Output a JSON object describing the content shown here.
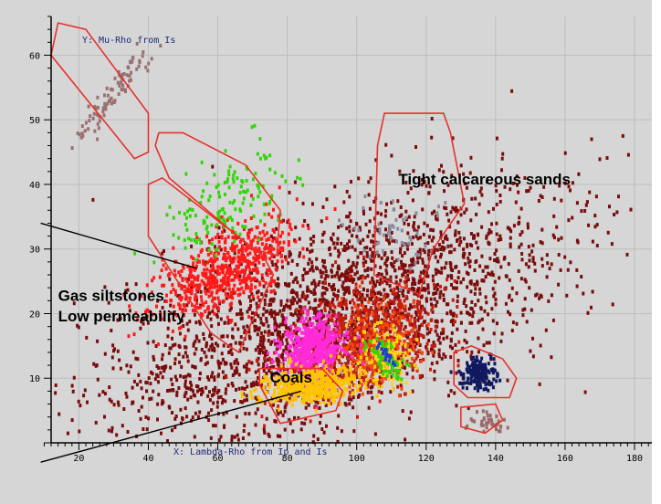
{
  "chart_data": {
    "type": "scatter",
    "xlabel": "X: Lambda-Rho from Ip and Is",
    "ylabel": "Y: Mu-Rho from Is",
    "xlim": [
      12,
      185
    ],
    "ylim": [
      0,
      66
    ],
    "xticks": [
      20,
      40,
      60,
      80,
      100,
      120,
      140,
      160,
      180
    ],
    "yticks": [
      10,
      20,
      30,
      40,
      50,
      60
    ],
    "grid": true,
    "colors": {
      "background": "#d6d6d6",
      "grid": "#bdbdbd",
      "polygon": "#e8302a",
      "gas_cloud": "#7a0c0c",
      "brine_core": "#c81e10",
      "hot": "#f04a10",
      "warm": "#ffd21a",
      "green": "#35d40a",
      "blue": "#1f3cd8",
      "siltstone": "#ff1a1a",
      "magenta": "#ff2ad8",
      "coal": "#ffc400",
      "calcareous": "#8a8aa0",
      "navy": "#101860",
      "upper_trend": "#9a7070"
    },
    "clusters": [
      {
        "id": "main-cloud",
        "color": "#7a0c0c",
        "center": [
          95,
          20
        ],
        "axis_angle_deg": -23,
        "spread": [
          34,
          7.5
        ],
        "count": 2600
      },
      {
        "id": "dense-core",
        "color": "#c81e10",
        "center": [
          101,
          16.5
        ],
        "axis_angle_deg": -25,
        "spread": [
          12,
          3.6
        ],
        "count": 700
      },
      {
        "id": "hot-core",
        "color": "#f04a10",
        "center": [
          106,
          15
        ],
        "axis_angle_deg": -30,
        "spread": [
          6,
          3.0
        ],
        "count": 260
      },
      {
        "id": "warm-core",
        "color": "#ffd21a",
        "center": [
          108,
          14
        ],
        "axis_angle_deg": -35,
        "spread": [
          3.2,
          2.6
        ],
        "count": 140
      },
      {
        "id": "green-core",
        "color": "#35d40a",
        "center": [
          108,
          13.5
        ],
        "axis_angle_deg": -40,
        "spread": [
          1.8,
          2.0
        ],
        "count": 70
      },
      {
        "id": "blue-core",
        "color": "#1f3cd8",
        "center": [
          108,
          14
        ],
        "axis_angle_deg": -40,
        "spread": [
          0.7,
          1.0
        ],
        "count": 22
      },
      {
        "id": "siltstone-red",
        "color": "#ff1a1a",
        "center": [
          62,
          27
        ],
        "axis_angle_deg": -32,
        "spread": [
          11,
          2.6
        ],
        "count": 620
      },
      {
        "id": "upper-green",
        "color": "#35d40a",
        "center": [
          62,
          37
        ],
        "axis_angle_deg": -35,
        "spread": [
          10,
          2.8
        ],
        "count": 150
      },
      {
        "id": "magenta-blob",
        "color": "#ff2ad8",
        "center": [
          87,
          15
        ],
        "axis_angle_deg": -60,
        "spread": [
          4.5,
          2.4
        ],
        "count": 520
      },
      {
        "id": "coal-yellow",
        "color": "#ffc400",
        "center": [
          86,
          9
        ],
        "axis_angle_deg": -5,
        "spread": [
          7,
          1.3
        ],
        "count": 480
      },
      {
        "id": "calcareous-grey",
        "color": "#8a8aa0",
        "center": [
          110,
          33
        ],
        "axis_angle_deg": -70,
        "spread": [
          6,
          3.5
        ],
        "count": 55
      },
      {
        "id": "navy-cluster",
        "color": "#101860",
        "center": [
          135,
          11
        ],
        "axis_angle_deg": 0,
        "spread": [
          2.8,
          1.3
        ],
        "count": 160
      },
      {
        "id": "lower-right",
        "color": "#9a6a6a",
        "center": [
          137,
          3.5
        ],
        "axis_angle_deg": 0,
        "spread": [
          3,
          0.8
        ],
        "count": 40
      },
      {
        "id": "upper-trend",
        "color": "#9a7070",
        "center": [
          29,
          54
        ],
        "axis_angle_deg": -53,
        "spread": [
          8.5,
          0.9
        ],
        "count": 90
      }
    ],
    "polygons": [
      {
        "id": "upper-trend-polygon",
        "points": [
          [
            14,
            65
          ],
          [
            22,
            64
          ],
          [
            40,
            51
          ],
          [
            40,
            45
          ],
          [
            36,
            44
          ],
          [
            12,
            60
          ]
        ]
      },
      {
        "id": "green-polygon",
        "points": [
          [
            43,
            48
          ],
          [
            50,
            48
          ],
          [
            68,
            43
          ],
          [
            78,
            36
          ],
          [
            77,
            29
          ],
          [
            70,
            30
          ],
          [
            46,
            41
          ],
          [
            42,
            46
          ]
        ]
      },
      {
        "id": "siltstone-polygon",
        "points": [
          [
            40,
            40
          ],
          [
            44,
            41
          ],
          [
            73,
            29
          ],
          [
            76,
            26
          ],
          [
            70,
            19
          ],
          [
            66,
            14
          ],
          [
            58,
            17
          ],
          [
            40,
            32
          ]
        ]
      },
      {
        "id": "calcareous-polygon",
        "points": [
          [
            108,
            51
          ],
          [
            125,
            51
          ],
          [
            127,
            48
          ],
          [
            131,
            37
          ],
          [
            122,
            30
          ],
          [
            118,
            23
          ],
          [
            105,
            26
          ],
          [
            106,
            46
          ]
        ]
      },
      {
        "id": "coal-polygon",
        "points": [
          [
            72,
            11.5
          ],
          [
            90,
            11.5
          ],
          [
            96,
            8
          ],
          [
            94,
            5
          ],
          [
            78,
            3
          ],
          [
            72,
            9
          ]
        ]
      },
      {
        "id": "navy-polygon",
        "points": [
          [
            128,
            14
          ],
          [
            133,
            15
          ],
          [
            142,
            13
          ],
          [
            146,
            10
          ],
          [
            144,
            7
          ],
          [
            132,
            7
          ],
          [
            128,
            9
          ]
        ]
      },
      {
        "id": "lower-right-polygon",
        "points": [
          [
            130,
            5.5
          ],
          [
            140,
            6
          ],
          [
            142,
            3.5
          ],
          [
            137,
            1.5
          ],
          [
            130,
            2.5
          ]
        ]
      }
    ],
    "annotations": [
      {
        "id": "label-tight-calcareous-sands",
        "text": "Tight calcareous sands",
        "x": 112,
        "y": 40
      },
      {
        "id": "label-gas-siltstones",
        "text": "Gas siltstones",
        "x": 14,
        "y": 22
      },
      {
        "id": "label-low-permeability",
        "text": "Low permeability",
        "x": 14,
        "y": 18.8
      },
      {
        "id": "label-coals",
        "text": "Coals",
        "x": 75,
        "y": 9.3
      }
    ],
    "pointer_lines": [
      {
        "id": "pointer-siltstones",
        "from": [
          9,
          34
        ],
        "to": [
          54,
          27
        ]
      },
      {
        "id": "pointer-coals",
        "from": [
          9,
          -3
        ],
        "to": [
          84,
          8
        ]
      }
    ]
  }
}
